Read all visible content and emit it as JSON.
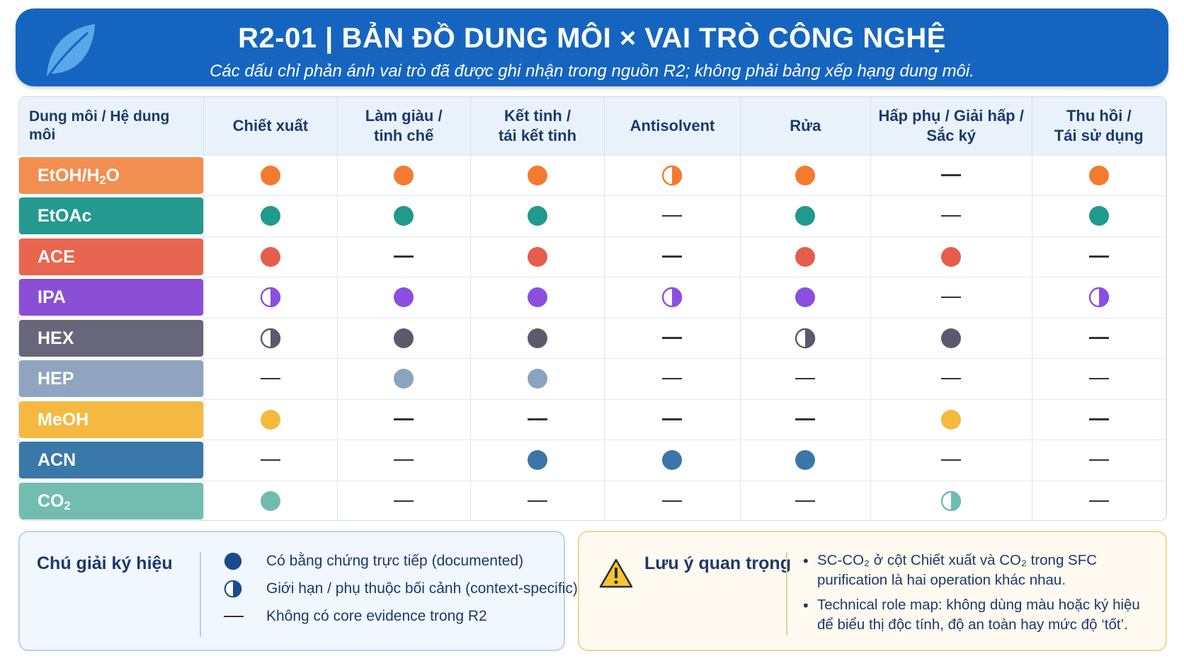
{
  "header": {
    "title": "R2-01 | BẢN ĐỒ DUNG MÔI × VAI TRÒ CÔNG NGHỆ",
    "subtitle": "Các dấu chỉ phản ánh vai trò đã được ghi nhận trong nguồn R2; không phải bảng xếp hạng dung môi.",
    "icon": "leaf-icon"
  },
  "table": {
    "corner_header": "Dung môi / Hệ dung môi",
    "columns": [
      [
        "Chiết xuất"
      ],
      [
        "Làm giàu /",
        "tinh chế"
      ],
      [
        "Kết tinh /",
        "tái kết tinh"
      ],
      [
        "Antisolvent"
      ],
      [
        "Rửa"
      ],
      [
        "Hấp phụ / Giải hấp /",
        "Sắc ký"
      ],
      [
        "Thu hồi /",
        "Tái sử dụng"
      ]
    ],
    "rows": [
      {
        "name": "EtOH/H",
        "sub": "2",
        "tail": "O",
        "color": "#f28e50",
        "dot": "#f47a30",
        "marks": [
          "full",
          "full",
          "full",
          "half",
          "full",
          "none",
          "full"
        ]
      },
      {
        "name": "EtOAc",
        "sub": "",
        "tail": "",
        "color": "#23998f",
        "dot": "#1f9a8c",
        "marks": [
          "full",
          "full",
          "full",
          "none",
          "full",
          "none",
          "full"
        ]
      },
      {
        "name": "ACE",
        "sub": "",
        "tail": "",
        "color": "#e8664f",
        "dot": "#e75d4b",
        "marks": [
          "full",
          "none",
          "full",
          "none",
          "full",
          "full",
          "none"
        ]
      },
      {
        "name": "IPA",
        "sub": "",
        "tail": "",
        "color": "#8b4fd6",
        "dot": "#8a4fe0",
        "marks": [
          "half",
          "full",
          "full",
          "half",
          "full",
          "none",
          "half"
        ]
      },
      {
        "name": "HEX",
        "sub": "",
        "tail": "",
        "color": "#67667a",
        "dot": "#5b5a6c",
        "marks": [
          "half",
          "full",
          "full",
          "none",
          "half",
          "full",
          "none"
        ]
      },
      {
        "name": "HEP",
        "sub": "",
        "tail": "",
        "color": "#8ea4bf",
        "dot": "#8aa3c0",
        "marks": [
          "none",
          "full",
          "full",
          "none",
          "none",
          "none",
          "none"
        ]
      },
      {
        "name": "MeOH",
        "sub": "",
        "tail": "",
        "color": "#f5b941",
        "dot": "#f6b93c",
        "marks": [
          "full",
          "none",
          "none",
          "none",
          "none",
          "full",
          "none"
        ]
      },
      {
        "name": "ACN",
        "sub": "",
        "tail": "",
        "color": "#3a78aa",
        "dot": "#3c76a8",
        "marks": [
          "none",
          "none",
          "full",
          "full",
          "full",
          "none",
          "none"
        ]
      },
      {
        "name": "CO",
        "sub": "2",
        "tail": "",
        "color": "#72bdb0",
        "dot": "#6fbcae",
        "marks": [
          "full",
          "none",
          "none",
          "none",
          "none",
          "half",
          "none"
        ]
      }
    ]
  },
  "legend": {
    "title": "Chú giải ký hiệu",
    "items": [
      {
        "symbol": "full",
        "text": "Có bằng chứng trực tiếp (documented)"
      },
      {
        "symbol": "half",
        "text": "Giới hạn / phụ thuộc bối cảnh (context-specific)"
      },
      {
        "symbol": "none",
        "text": "Không có core evidence trong R2"
      }
    ],
    "color": "#1a4b8c"
  },
  "note": {
    "title": "Lưu ý quan trọng",
    "icon": "warning-icon",
    "bullets": [
      "SC-CO₂ ở cột Chiết xuất và CO₂ trong SFC purification là hai operation khác nhau.",
      "Technical role map: không dùng màu hoặc ký hiệu để biểu thị độc tính, độ an toàn hay mức độ ‘tốt’."
    ]
  }
}
